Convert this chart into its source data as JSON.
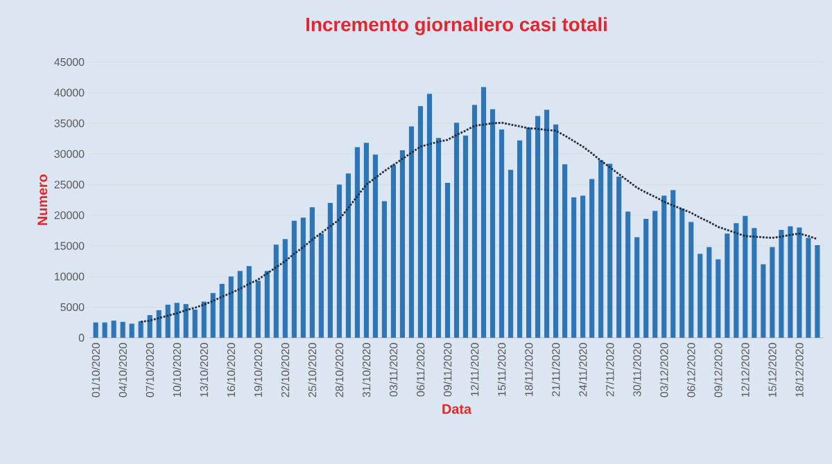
{
  "chart_data": {
    "type": "bar",
    "title": "Incremento giornaliero casi totali",
    "xlabel": "Data",
    "ylabel": "Numero",
    "categories": [
      "01/10/2020",
      null,
      null,
      "04/10/2020",
      null,
      null,
      "07/10/2020",
      null,
      null,
      "10/10/2020",
      null,
      null,
      "13/10/2020",
      null,
      null,
      "16/10/2020",
      null,
      null,
      "19/10/2020",
      null,
      null,
      "22/10/2020",
      null,
      null,
      "25/10/2020",
      null,
      null,
      "28/10/2020",
      null,
      null,
      "31/10/2020",
      null,
      null,
      "03/11/2020",
      null,
      null,
      "06/11/2020",
      null,
      null,
      "09/11/2020",
      null,
      null,
      "12/11/2020",
      null,
      null,
      "15/11/2020",
      null,
      null,
      "18/11/2020",
      null,
      null,
      "21/11/2020",
      null,
      null,
      "24/11/2020",
      null,
      null,
      "27/11/2020",
      null,
      null,
      "30/11/2020",
      null,
      null,
      "03/12/2020",
      null,
      null,
      "06/12/2020",
      null,
      null,
      "09/12/2020",
      null,
      null,
      "12/12/2020",
      null,
      null,
      "15/12/2020",
      null,
      null,
      "18/12/2020",
      null,
      null
    ],
    "series": [
      {
        "color": "#2e75b6",
        "values": [
          2500,
          2500,
          2800,
          2600,
          2300,
          2700,
          3700,
          4500,
          5400,
          5700,
          5500,
          4600,
          5900,
          7300,
          8800,
          10000,
          10900,
          11700,
          9300,
          10900,
          15200,
          16100,
          19100,
          19600,
          21300,
          17000,
          22000,
          25000,
          26800,
          31100,
          31800,
          29900,
          22300,
          28200,
          30600,
          34500,
          37800,
          39800,
          32600,
          25300,
          35100,
          33000,
          38000,
          40900,
          37300,
          34000,
          27400,
          32200,
          34300,
          36200,
          37200,
          34800,
          28300,
          22900,
          23200,
          25900,
          29000,
          28400,
          26300,
          20600,
          16400,
          19400,
          20700,
          23200,
          24100,
          21100,
          18900,
          13700,
          14800,
          12800,
          17000,
          18700,
          19900,
          17900,
          12000,
          14800,
          17600,
          18200,
          18000,
          16300,
          15100
        ]
      },
      {
        "type": "line",
        "color": "#1f2a3a",
        "line_style": "dotted",
        "values": [
          null,
          null,
          null,
          null,
          null,
          2600,
          2800,
          3200,
          3600,
          4000,
          4500,
          4900,
          5400,
          6000,
          6700,
          7300,
          8000,
          8800,
          9500,
          10500,
          11500,
          12500,
          13700,
          14800,
          16000,
          17100,
          18200,
          19300,
          21200,
          23100,
          25000,
          26100,
          27200,
          28200,
          29200,
          30200,
          31200,
          31600,
          32000,
          32300,
          33100,
          33800,
          34600,
          34800,
          35000,
          35100,
          34800,
          34500,
          34200,
          34100,
          33900,
          33800,
          33000,
          32100,
          31200,
          30100,
          28900,
          27800,
          26700,
          25600,
          24500,
          23700,
          23000,
          22200,
          21600,
          21000,
          20400,
          19600,
          18900,
          18100,
          17600,
          17100,
          16600,
          16500,
          16400,
          16300,
          16500,
          16800,
          17000,
          16600,
          16100
        ]
      }
    ],
    "ylim": [
      0,
      45000
    ],
    "yticks": [
      0,
      5000,
      10000,
      15000,
      20000,
      25000,
      30000,
      35000,
      40000,
      45000
    ],
    "grid": "y"
  }
}
